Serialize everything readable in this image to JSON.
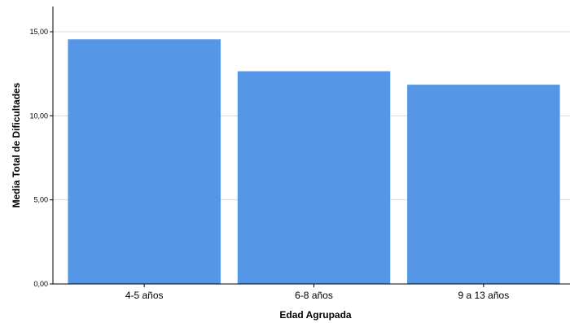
{
  "chart_data": {
    "type": "bar",
    "categories": [
      "4-5 años",
      "6-8 años",
      "9 a 13 años"
    ],
    "values": [
      14.55,
      12.65,
      11.85
    ],
    "xlabel": "Edad Agrupada",
    "ylabel": "Media Total de Dificultades",
    "ylim": [
      0,
      16.5
    ],
    "yticks": [
      0,
      5,
      10,
      15
    ],
    "ytick_labels": [
      "0,00",
      "5,00",
      "10,00",
      "15,00"
    ],
    "grid": true,
    "bar_color": "#5596e6",
    "legend": "none"
  }
}
